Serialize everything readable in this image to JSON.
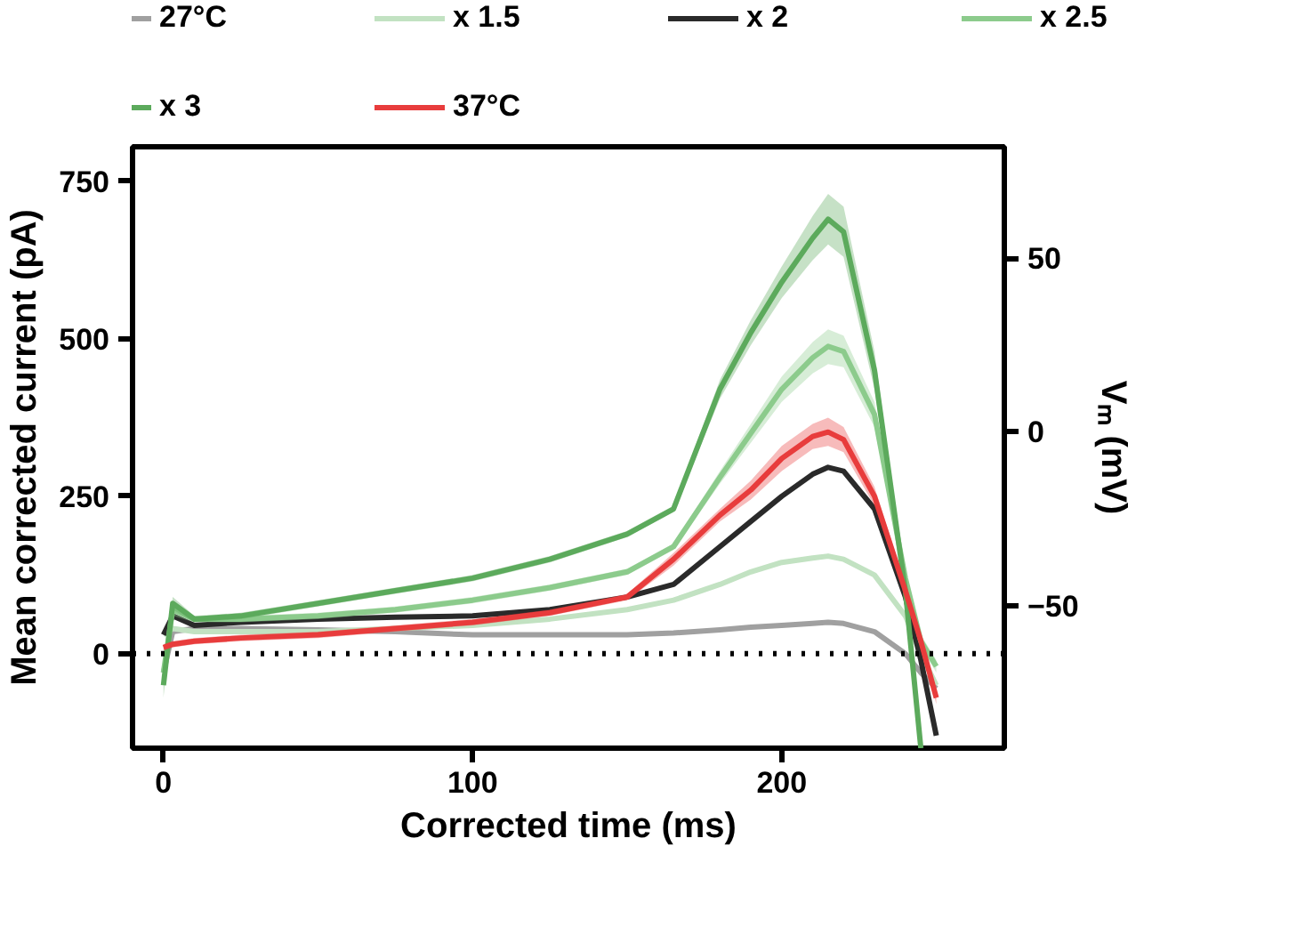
{
  "chart_data": {
    "type": "line",
    "xlabel": "Corrected time (ms)",
    "ylabel": "Mean corrected current (pA)",
    "y2label": "Vₘ (mV)",
    "x": [
      0,
      3,
      10,
      25,
      50,
      75,
      100,
      125,
      150,
      165,
      180,
      190,
      200,
      210,
      215,
      220,
      230,
      240,
      245,
      250
    ],
    "series": [
      {
        "name": "27°C",
        "color": "#a0a0a0",
        "values": [
          -30,
          35,
          40,
          40,
          38,
          35,
          30,
          30,
          30,
          33,
          38,
          42,
          45,
          48,
          50,
          48,
          35,
          0,
          -30,
          -55
        ]
      },
      {
        "name": "x 1.5",
        "color": "#c2e2c2",
        "values": [
          30,
          40,
          35,
          35,
          35,
          40,
          45,
          55,
          70,
          85,
          110,
          130,
          145,
          152,
          155,
          150,
          125,
          60,
          0,
          -50
        ]
      },
      {
        "name": "x 2",
        "color": "#2a2a2a",
        "values": [
          30,
          60,
          45,
          50,
          55,
          58,
          60,
          70,
          90,
          110,
          170,
          210,
          250,
          285,
          296,
          290,
          230,
          90,
          -10,
          -130
        ]
      },
      {
        "name": "x 2.5",
        "color": "#8ccb8c",
        "values": [
          -30,
          70,
          55,
          55,
          60,
          70,
          85,
          105,
          130,
          170,
          280,
          350,
          420,
          470,
          488,
          480,
          380,
          120,
          20,
          -20
        ],
        "lower": [
          -50,
          60,
          50,
          50,
          55,
          65,
          80,
          100,
          125,
          165,
          270,
          335,
          400,
          445,
          460,
          455,
          360,
          110,
          10,
          -30
        ],
        "upper": [
          -10,
          80,
          60,
          60,
          65,
          75,
          90,
          110,
          135,
          175,
          290,
          365,
          440,
          495,
          515,
          505,
          400,
          130,
          30,
          -10
        ]
      },
      {
        "name": "x 3",
        "color": "#5caa5c",
        "values": [
          -50,
          80,
          55,
          60,
          80,
          100,
          120,
          150,
          190,
          230,
          420,
          510,
          590,
          660,
          690,
          670,
          450,
          100,
          -150,
          null
        ],
        "lower": [
          -70,
          70,
          50,
          55,
          75,
          95,
          115,
          145,
          185,
          225,
          405,
          490,
          565,
          625,
          650,
          630,
          420,
          90,
          -150,
          null
        ],
        "upper": [
          -30,
          90,
          60,
          65,
          85,
          105,
          125,
          155,
          195,
          235,
          435,
          530,
          615,
          695,
          730,
          710,
          480,
          110,
          -140,
          null
        ]
      },
      {
        "name": "37°C",
        "color": "#e83c3c",
        "values": [
          10,
          15,
          20,
          25,
          30,
          40,
          50,
          65,
          90,
          150,
          220,
          260,
          310,
          345,
          352,
          340,
          250,
          100,
          20,
          -70
        ],
        "lower": [
          5,
          10,
          15,
          20,
          25,
          35,
          45,
          60,
          85,
          140,
          210,
          245,
          290,
          325,
          330,
          320,
          235,
          90,
          10,
          -80
        ],
        "upper": [
          15,
          20,
          25,
          30,
          35,
          45,
          55,
          70,
          95,
          160,
          230,
          275,
          330,
          365,
          375,
          360,
          265,
          110,
          30,
          -60
        ]
      }
    ],
    "xlim": [
      -10,
      272
    ],
    "xticks": [
      0,
      100,
      200
    ],
    "ylim": [
      -150,
      805
    ],
    "yticks": [
      0,
      250,
      500,
      750
    ],
    "y2lim": [
      -91,
      82
    ],
    "y2ticks": [
      -50,
      0,
      50
    ],
    "ref_lines": [
      {
        "axis": "y",
        "value": 0,
        "color": "#000000",
        "line_style": "dotted"
      }
    ],
    "legend": "top",
    "grid": false
  }
}
